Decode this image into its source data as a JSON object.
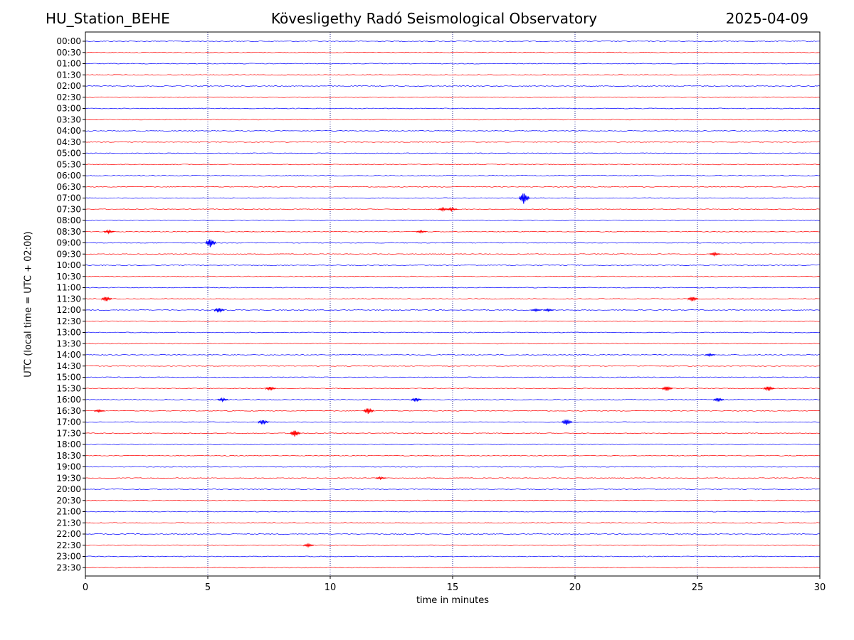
{
  "header": {
    "station": "HU_Station_BEHE",
    "observatory": "Kövesligethy Radó Seismological Observatory",
    "date": "2025-04-09"
  },
  "chart_data": {
    "type": "line",
    "title": "Kövesligethy Radó Seismological Observatory",
    "xlabel": "time in minutes",
    "ylabel": "UTC (local time = UTC + 02:00)",
    "xlim": [
      0,
      30
    ],
    "xticks": [
      0,
      5,
      10,
      15,
      20,
      25,
      30
    ],
    "grid": "vertical dotted lines at x ticks",
    "colors": {
      "even_rows": "#0000ff",
      "odd_rows": "#ff0000",
      "grid": "#000080"
    },
    "rows": [
      "00:00",
      "00:30",
      "01:00",
      "01:30",
      "02:00",
      "02:30",
      "03:00",
      "03:30",
      "04:00",
      "04:30",
      "05:00",
      "05:30",
      "06:00",
      "06:30",
      "07:00",
      "07:30",
      "08:00",
      "08:30",
      "09:00",
      "09:30",
      "10:00",
      "10:30",
      "11:00",
      "11:30",
      "12:00",
      "12:30",
      "13:00",
      "13:30",
      "14:00",
      "14:30",
      "15:00",
      "15:30",
      "16:00",
      "16:30",
      "17:00",
      "17:30",
      "18:00",
      "18:30",
      "19:00",
      "19:30",
      "20:00",
      "20:30",
      "21:00",
      "21:30",
      "22:00",
      "22:30",
      "23:00",
      "23:30"
    ],
    "events": [
      {
        "row": "07:00",
        "minute": 17.9,
        "amplitude": 8
      },
      {
        "row": "07:30",
        "minute": 14.6,
        "amplitude": 2
      },
      {
        "row": "07:30",
        "minute": 14.95,
        "amplitude": 2
      },
      {
        "row": "08:30",
        "minute": 0.95,
        "amplitude": 2
      },
      {
        "row": "08:30",
        "minute": 13.7,
        "amplitude": 1.5
      },
      {
        "row": "09:00",
        "minute": 5.1,
        "amplitude": 6
      },
      {
        "row": "09:30",
        "minute": 25.7,
        "amplitude": 2
      },
      {
        "row": "11:30",
        "minute": 0.85,
        "amplitude": 3
      },
      {
        "row": "11:30",
        "minute": 24.8,
        "amplitude": 3
      },
      {
        "row": "12:00",
        "minute": 5.45,
        "amplitude": 3
      },
      {
        "row": "12:00",
        "minute": 18.4,
        "amplitude": 1.5
      },
      {
        "row": "12:00",
        "minute": 18.9,
        "amplitude": 1.5
      },
      {
        "row": "14:00",
        "minute": 25.5,
        "amplitude": 1.5
      },
      {
        "row": "15:30",
        "minute": 7.55,
        "amplitude": 2.5
      },
      {
        "row": "15:30",
        "minute": 23.75,
        "amplitude": 3
      },
      {
        "row": "15:30",
        "minute": 27.9,
        "amplitude": 3
      },
      {
        "row": "16:00",
        "minute": 5.6,
        "amplitude": 2
      },
      {
        "row": "16:00",
        "minute": 13.5,
        "amplitude": 2.5
      },
      {
        "row": "16:00",
        "minute": 25.85,
        "amplitude": 2.5
      },
      {
        "row": "16:30",
        "minute": 11.55,
        "amplitude": 4
      },
      {
        "row": "16:30",
        "minute": 0.55,
        "amplitude": 1.5
      },
      {
        "row": "17:00",
        "minute": 7.25,
        "amplitude": 3
      },
      {
        "row": "17:00",
        "minute": 19.65,
        "amplitude": 4
      },
      {
        "row": "17:30",
        "minute": 8.55,
        "amplitude": 4.5
      },
      {
        "row": "19:30",
        "minute": 12.05,
        "amplitude": 1.5
      },
      {
        "row": "22:30",
        "minute": 9.1,
        "amplitude": 2
      }
    ]
  }
}
